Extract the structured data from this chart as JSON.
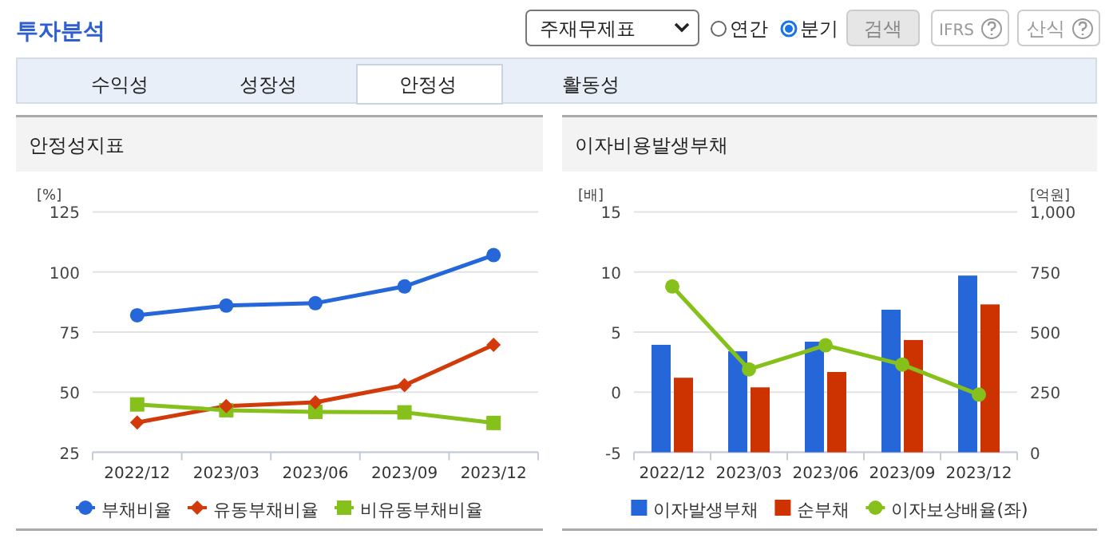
{
  "chart_data": [
    {
      "type": "line",
      "title": "안정성지표",
      "ylabel": "[%]",
      "annotations": [
        "투자분석",
        "주재무제표",
        "연간",
        "분기",
        "검색",
        "IFRS",
        "산식",
        "수익성",
        "성장성",
        "안정성",
        "활동성"
      ],
      "categories": [
        "2022/12",
        "2023/03",
        "2023/06",
        "2023/09",
        "2023/12"
      ],
      "series": [
        {
          "name": "부채비율",
          "color": "#2566d8",
          "marker": "circle",
          "values": [
            82,
            86,
            87,
            94,
            107
          ]
        },
        {
          "name": "유동부채비율",
          "color": "#d23a0a",
          "marker": "diamond",
          "values": [
            37.4,
            44.2,
            45.8,
            52.9,
            69.7
          ]
        },
        {
          "name": "비유동부채비율",
          "color": "#86c01a",
          "marker": "square",
          "values": [
            44.9,
            42.5,
            41.8,
            41.6,
            37.2
          ]
        }
      ],
      "ylim": [
        25,
        125
      ],
      "yticks": [
        25,
        50,
        75,
        100,
        125
      ],
      "grid": "y",
      "legend": "bottom"
    },
    {
      "type": "bar",
      "title": "이자비용발생부채",
      "ylabel": "[배]",
      "y2label": "[억원]",
      "categories": [
        "2022/12",
        "2023/03",
        "2023/06",
        "2023/09",
        "2023/12"
      ],
      "series": [
        {
          "name": "이자발생부채",
          "color": "#2566d8",
          "axis": "y2",
          "values": [
            447,
            420,
            460,
            593,
            735
          ]
        },
        {
          "name": "순부채",
          "color": "#cc3300",
          "axis": "y2",
          "values": [
            310,
            270,
            334,
            467,
            615
          ]
        },
        {
          "name": "이자보상배율(좌)",
          "type": "line",
          "color": "#86c01a",
          "marker": "circle",
          "axis": "y",
          "values": [
            8.8,
            1.9,
            3.9,
            2.3,
            -0.2
          ]
        }
      ],
      "ylim": [
        -5,
        15
      ],
      "yticks": [
        -5,
        0,
        5,
        10,
        15
      ],
      "y2lim": [
        0,
        1000
      ],
      "y2ticks": [
        0,
        250,
        500,
        750,
        {
          "value": 1000,
          "label": "1,000"
        }
      ],
      "grid": "y",
      "legend": "bottom"
    }
  ]
}
